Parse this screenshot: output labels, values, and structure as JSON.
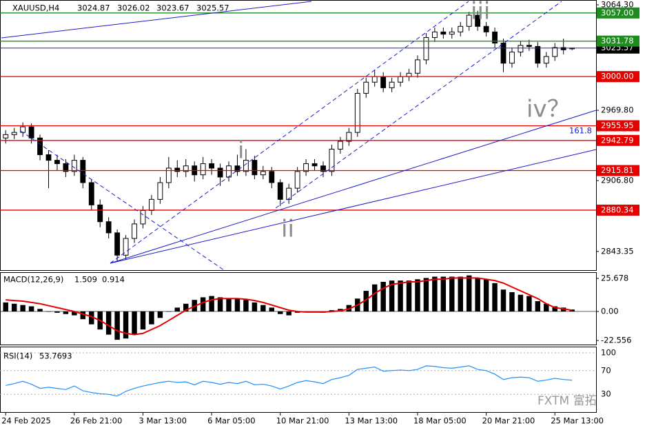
{
  "chart_data": [
    {
      "type": "candlestick",
      "title": "XAUUSD,H4",
      "x": [
        0,
        1,
        2,
        3,
        4,
        5,
        6,
        7,
        8,
        9,
        10,
        11,
        12,
        13,
        14,
        15,
        16,
        17,
        18,
        19,
        20,
        21,
        22,
        23,
        24,
        25,
        26,
        27,
        28,
        29,
        30,
        31,
        32,
        33,
        34,
        35,
        36,
        37,
        38,
        39,
        40,
        41,
        42,
        43,
        44,
        45,
        46,
        47,
        48,
        49,
        50,
        51,
        52,
        53,
        54,
        55,
        56,
        57,
        58,
        59,
        60,
        61,
        62,
        63,
        64,
        65,
        66
      ],
      "open": [
        2945,
        2948,
        2950,
        2955,
        2945,
        2930,
        2925,
        2922,
        2915,
        2925,
        2905,
        2885,
        2870,
        2860,
        2840,
        2855,
        2868,
        2880,
        2890,
        2905,
        2918,
        2915,
        2920,
        2912,
        2922,
        2918,
        2910,
        2920,
        2915,
        2925,
        2912,
        2915,
        2905,
        2890,
        2900,
        2915,
        2922,
        2920,
        2915,
        2935,
        2942,
        2950,
        2985,
        2995,
        3000,
        2990,
        2995,
        3000,
        3003,
        3015,
        3035,
        3040,
        3038,
        3040,
        3045,
        3055,
        3045,
        3040,
        3030,
        3012,
        3022,
        3028,
        3027,
        3012,
        3018,
        3026,
        3024.87
      ],
      "high": [
        2952,
        2954,
        2959,
        2958,
        2948,
        2934,
        2930,
        2926,
        2930,
        2928,
        2908,
        2890,
        2874,
        2863,
        2858,
        2872,
        2884,
        2894,
        2910,
        2928,
        2925,
        2926,
        2924,
        2928,
        2926,
        2922,
        2924,
        2930,
        2935,
        2929,
        2920,
        2919,
        2908,
        2904,
        2919,
        2926,
        2926,
        2924,
        2939,
        2946,
        2954,
        2989,
        2999,
        3006,
        3004,
        2999,
        3004,
        3007,
        3019,
        3039,
        3044,
        3044,
        3044,
        3049,
        3058,
        3059,
        3049,
        3044,
        3034,
        3026,
        3032,
        3033,
        3031,
        3022,
        3030,
        3034,
        3026.02
      ],
      "low": [
        2940,
        2944,
        2946,
        2940,
        2925,
        2900,
        2916,
        2910,
        2911,
        2900,
        2880,
        2865,
        2855,
        2834,
        2836,
        2851,
        2864,
        2876,
        2886,
        2900,
        2910,
        2910,
        2906,
        2908,
        2912,
        2902,
        2906,
        2911,
        2911,
        2908,
        2908,
        2900,
        2884,
        2886,
        2896,
        2911,
        2916,
        2910,
        2911,
        2931,
        2938,
        2946,
        2981,
        2991,
        2986,
        2986,
        2991,
        2996,
        2999,
        3011,
        3031,
        3034,
        3034,
        3036,
        3041,
        3041,
        3036,
        3026,
        3004,
        3008,
        3018,
        3023,
        3008,
        3008,
        3014,
        3020,
        3023.67
      ],
      "close": [
        2948,
        2950,
        2955,
        2945,
        2930,
        2925,
        2922,
        2915,
        2925,
        2905,
        2885,
        2870,
        2860,
        2840,
        2855,
        2868,
        2880,
        2890,
        2905,
        2918,
        2915,
        2920,
        2912,
        2922,
        2918,
        2910,
        2920,
        2915,
        2925,
        2912,
        2915,
        2905,
        2890,
        2900,
        2915,
        2922,
        2920,
        2915,
        2935,
        2942,
        2950,
        2985,
        2995,
        3000,
        2990,
        2995,
        3000,
        3003,
        3015,
        3035,
        3040,
        3038,
        3040,
        3045,
        3055,
        3045,
        3040,
        3030,
        3012,
        3022,
        3028,
        3027,
        3012,
        3018,
        3026,
        3024,
        3025.57
      ],
      "up_color": "#ffffff",
      "down_color": "#000000",
      "wick_color": "#000000",
      "price_line_color": "#1a1acd",
      "xlim": [
        -0.5,
        68.8
      ],
      "xticks": [
        {
          "value": 0,
          "label": "24 Feb 2025"
        },
        {
          "value": 8,
          "label": "26 Feb 21:00"
        },
        {
          "value": 16,
          "label": "3 Mar 13:00"
        },
        {
          "value": 24,
          "label": "6 Mar 05:00"
        },
        {
          "value": 32,
          "label": "10 Mar 21:00"
        },
        {
          "value": 40,
          "label": "13 Mar 13:00"
        },
        {
          "value": 48,
          "label": "18 Mar 05:00"
        },
        {
          "value": 56,
          "label": "20 Mar 21:00"
        },
        {
          "value": 64,
          "label": "25 Mar 13:00"
        }
      ],
      "ylim": [
        2826.6,
        3068.0
      ],
      "yticks": [
        {
          "value": 3064.3,
          "label": "3064.30"
        },
        {
          "value": 2969.8,
          "label": "2969.80"
        },
        {
          "value": 2906.8,
          "label": "2906.80"
        },
        2843.35
      ],
      "levels": [
        {
          "value": 3057,
          "label": "3057.00",
          "color": "#1e8c1e"
        },
        {
          "value": 3031.78,
          "label": "3031.78",
          "color": "#1e8c1e"
        },
        {
          "value": 3000,
          "label": "3000.00",
          "color": "#e60000"
        },
        {
          "value": 2955.95,
          "label": "2955.95",
          "color": "#e60000"
        },
        {
          "value": 2942.79,
          "label": "2942.79",
          "color": "#e60000"
        },
        {
          "value": 2915.81,
          "label": "2915.81",
          "color": "#e60000"
        },
        {
          "value": 2880.34,
          "label": "2880.34",
          "color": "#e60000"
        }
      ],
      "annotations": [
        "iii",
        "i",
        "ii",
        "iv？",
        "161.8"
      ]
    },
    {
      "type": "macd",
      "title": "MACD(12,26,9)",
      "histogram": [
        7,
        6,
        5,
        4,
        2,
        0,
        -1,
        -2,
        -3,
        -6,
        -10,
        -14,
        -18,
        -22,
        -21,
        -18,
        -14,
        -10,
        -5,
        0,
        3,
        6,
        9,
        11,
        12,
        11,
        10,
        10,
        9,
        7,
        5,
        3,
        -2,
        -3,
        -1,
        0,
        0,
        -1,
        1,
        2,
        5,
        10,
        16,
        21,
        23,
        24,
        24,
        24,
        25,
        26,
        27,
        27,
        27,
        27,
        28,
        26,
        25,
        22,
        17,
        15,
        13,
        12,
        8,
        6,
        4,
        3,
        1.509
      ],
      "signal": [
        9,
        8.5,
        8,
        7,
        6,
        4.5,
        3,
        1.5,
        0,
        -2,
        -4,
        -7,
        -11,
        -15,
        -17,
        -18,
        -17,
        -14,
        -11,
        -7,
        -3,
        1,
        4,
        7,
        9,
        10,
        10,
        10,
        9.5,
        8.5,
        7,
        5,
        3,
        1,
        0,
        -0.5,
        -0.5,
        -0.5,
        0,
        0.5,
        2,
        5,
        9,
        14,
        18,
        21,
        22,
        23,
        23,
        24,
        25,
        25,
        26,
        26,
        26,
        26,
        25,
        24,
        22,
        19,
        16,
        13,
        10,
        6,
        3,
        2,
        0.914
      ],
      "histogram_color": "#000000",
      "signal_color": "#e60000",
      "ylim": [
        -25.7,
        29.96
      ],
      "yticks": [
        25.678,
        {
          "value": 0,
          "label": "0.00"
        },
        -22.556
      ]
    },
    {
      "type": "line",
      "title": "RSI(14)",
      "values": [
        45,
        48,
        52,
        47,
        40,
        42,
        40,
        38,
        44,
        36,
        33,
        31,
        30,
        27,
        35,
        40,
        44,
        47,
        50,
        52,
        50,
        51,
        46,
        52,
        50,
        47,
        50,
        48,
        52,
        46,
        47,
        44,
        39,
        44,
        50,
        53,
        51,
        48,
        55,
        58,
        62,
        72,
        74,
        76,
        69,
        70,
        71,
        70,
        72,
        78,
        77,
        75,
        74,
        76,
        78,
        72,
        70,
        64,
        55,
        58,
        59,
        58,
        52,
        54,
        57,
        55,
        53.7693
      ],
      "color": "#1e90ff",
      "grid": "dotted",
      "ylim": [
        0,
        109.3
      ],
      "yticks": [
        100,
        70,
        30
      ]
    }
  ],
  "watermark": "FXTM 富拓"
}
